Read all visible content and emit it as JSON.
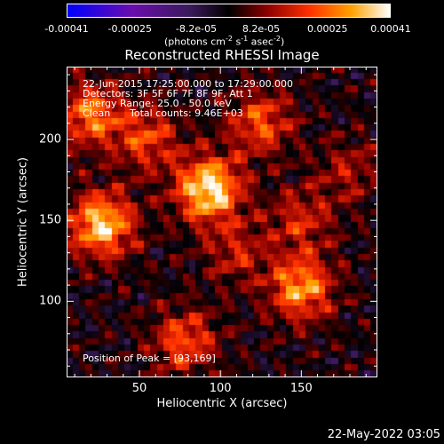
{
  "colorbar": {
    "ticks": [
      "-0.00041",
      "-0.00025",
      "-8.2e-05",
      "8.2e-05",
      "0.00025",
      "0.00041"
    ],
    "tick_values": [
      -0.00041,
      -0.00025,
      -8.2e-05,
      8.2e-05,
      0.00025,
      0.00041
    ],
    "units_main": "(photons cm",
    "units_sup1": "-2",
    "units_mid": " s",
    "units_sup2": "-1",
    "units_mid2": " asec",
    "units_sup3": "-2",
    "units_end": ")"
  },
  "chart_data": {
    "type": "heatmap",
    "title": "Reconstructed RHESSI Image",
    "xlabel": "Heliocentric X (arcsec)",
    "ylabel": "Heliocentric Y (arcsec)",
    "xlim": [
      5,
      197
    ],
    "ylim": [
      53,
      245
    ],
    "xticks": [
      50,
      100,
      150
    ],
    "yticks": [
      100,
      150,
      200
    ],
    "xtick_labels": [
      "50",
      "100",
      "150"
    ],
    "ytick_labels": [
      "100",
      "150",
      "200"
    ],
    "colormap": [
      "#0000ff",
      "#6a0dad",
      "#3a1a5a",
      "#000000",
      "#8b0000",
      "#ff3000",
      "#ffa000",
      "#ffffff"
    ],
    "annotations": {
      "time_range": "22-Jun-2015 17:25:00.000 to 17:29:00.000",
      "detectors": "Detectors: 3F 5F 6F 7F 8F 9F, Att 1",
      "energy": "Energy Range: 25.0 - 50.0 keV",
      "method": "Clean",
      "counts": "Total counts: 9.46E+03",
      "peak": "Position of Peak = [93,169]"
    },
    "peak": [
      93,
      169
    ],
    "sources": [
      {
        "x": 93,
        "y": 169,
        "amp": 1.0
      },
      {
        "x": 27,
        "y": 147,
        "amp": 0.9
      },
      {
        "x": 150,
        "y": 108,
        "amp": 0.75
      },
      {
        "x": 20,
        "y": 215,
        "amp": 0.65
      },
      {
        "x": 125,
        "y": 210,
        "amp": 0.55
      },
      {
        "x": 78,
        "y": 75,
        "amp": 0.55
      },
      {
        "x": 55,
        "y": 200,
        "amp": 0.5
      },
      {
        "x": 150,
        "y": 150,
        "amp": 0.4
      },
      {
        "x": 110,
        "y": 130,
        "amp": 0.35
      },
      {
        "x": 180,
        "y": 180,
        "amp": 0.3
      }
    ]
  },
  "footer": "22-May-2022 03:05"
}
